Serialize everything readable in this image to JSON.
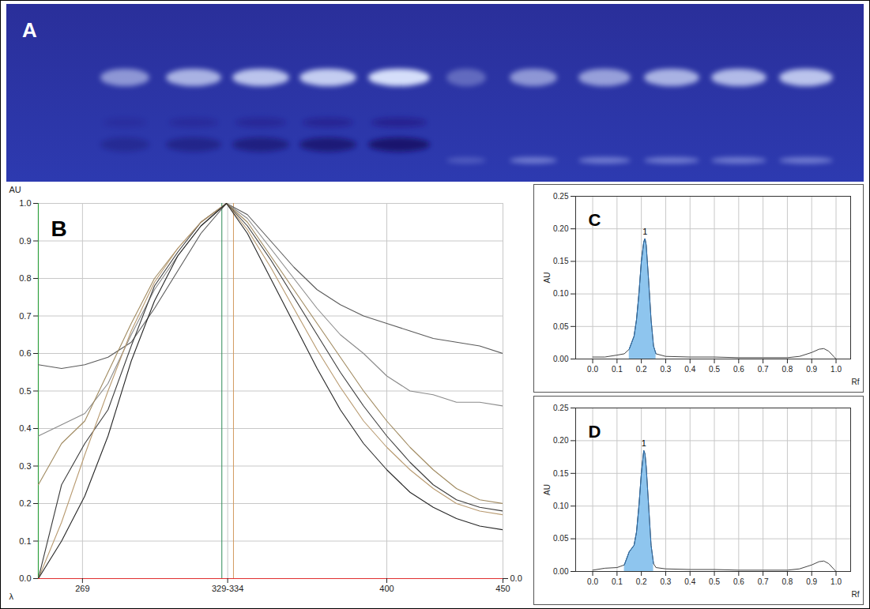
{
  "chart_data": [
    {
      "type": "image",
      "title": "A"
    },
    {
      "type": "spectra",
      "title": "B",
      "xlabel": "λ",
      "ylabel": "AU",
      "x": [
        250,
        260,
        270,
        280,
        290,
        300,
        310,
        320,
        331,
        340,
        350,
        360,
        370,
        380,
        390,
        400,
        410,
        420,
        430,
        440,
        450
      ],
      "series": [
        {
          "color": "#5a5a5a",
          "values": [
            0.57,
            0.56,
            0.57,
            0.59,
            0.63,
            0.72,
            0.82,
            0.92,
            1.0,
            0.97,
            0.9,
            0.83,
            0.77,
            0.73,
            0.7,
            0.68,
            0.66,
            0.64,
            0.63,
            0.62,
            0.6
          ]
        },
        {
          "color": "#8a8a8a",
          "values": [
            0.38,
            0.41,
            0.44,
            0.52,
            0.65,
            0.77,
            0.86,
            0.94,
            1.0,
            0.96,
            0.88,
            0.8,
            0.72,
            0.65,
            0.6,
            0.54,
            0.5,
            0.49,
            0.47,
            0.47,
            0.46
          ]
        },
        {
          "color": "#a08a60",
          "values": [
            0.25,
            0.36,
            0.42,
            0.55,
            0.68,
            0.8,
            0.88,
            0.95,
            1.0,
            0.95,
            0.86,
            0.77,
            0.68,
            0.59,
            0.5,
            0.42,
            0.35,
            0.29,
            0.24,
            0.21,
            0.2
          ]
        },
        {
          "color": "#3c3c3c",
          "values": [
            0.0,
            0.25,
            0.36,
            0.45,
            0.62,
            0.78,
            0.87,
            0.95,
            1.0,
            0.94,
            0.85,
            0.75,
            0.65,
            0.55,
            0.46,
            0.38,
            0.31,
            0.25,
            0.21,
            0.19,
            0.18
          ]
        },
        {
          "color": "#b89a70",
          "values": [
            0.0,
            0.15,
            0.33,
            0.5,
            0.66,
            0.79,
            0.88,
            0.95,
            1.0,
            0.93,
            0.83,
            0.72,
            0.61,
            0.51,
            0.42,
            0.35,
            0.29,
            0.24,
            0.2,
            0.18,
            0.17
          ]
        },
        {
          "color": "#262626",
          "values": [
            0.0,
            0.1,
            0.22,
            0.38,
            0.58,
            0.74,
            0.86,
            0.94,
            1.0,
            0.92,
            0.8,
            0.68,
            0.56,
            0.45,
            0.36,
            0.29,
            0.23,
            0.19,
            0.16,
            0.14,
            0.13
          ]
        }
      ],
      "vlines": [
        329,
        334
      ],
      "xlim": [
        250,
        450
      ],
      "xticks": [
        269,
        {
          "value": 331.5,
          "label": "329-334"
        },
        400,
        450
      ],
      "ylim": [
        0,
        1
      ],
      "yticks": [
        {
          "value": 0,
          "label": "0.0"
        },
        0.1,
        0.2,
        0.3,
        0.4,
        0.5,
        0.6,
        0.7,
        0.8,
        0.9,
        {
          "value": 1,
          "label": "1.0"
        }
      ],
      "y2lim": [
        0,
        1
      ],
      "y2ticks": [
        {
          "value": 0,
          "label": "0.0"
        }
      ],
      "grid": true
    },
    {
      "type": "densitogram",
      "title": "C",
      "xlabel": "Rf",
      "ylabel": "AU",
      "color": "#444444",
      "x": [
        0,
        0.05,
        0.1,
        0.13,
        0.15,
        0.17,
        0.18,
        0.19,
        0.2,
        0.21,
        0.215,
        0.22,
        0.23,
        0.24,
        0.25,
        0.26,
        0.3,
        0.4,
        0.5,
        0.6,
        0.7,
        0.8,
        0.85,
        0.9,
        0.93,
        0.95,
        0.97,
        0.99,
        1.0
      ],
      "values": [
        0.003,
        0.003,
        0.006,
        0.008,
        0.015,
        0.035,
        0.06,
        0.1,
        0.15,
        0.18,
        0.185,
        0.175,
        0.12,
        0.06,
        0.02,
        0.008,
        0.004,
        0.003,
        0.003,
        0.002,
        0.002,
        0.002,
        0.004,
        0.01,
        0.015,
        0.016,
        0.012,
        0.004,
        0.0
      ],
      "peak": {
        "label": "1",
        "range": [
          0.14,
          0.26
        ]
      },
      "xlim": [
        -0.07,
        1.06
      ],
      "xticks": [
        {
          "value": 0,
          "label": "0.0"
        },
        0.1,
        0.2,
        0.3,
        0.4,
        0.5,
        0.6,
        0.7,
        0.8,
        0.9,
        {
          "value": 1,
          "label": "1.0"
        }
      ],
      "ylim": [
        0,
        0.25
      ],
      "yticks": [
        {
          "value": 0,
          "label": "0.00"
        },
        {
          "value": 0.05,
          "label": "0.05"
        },
        {
          "value": 0.1,
          "label": "0.10"
        },
        {
          "value": 0.15,
          "label": "0.15"
        },
        {
          "value": 0.2,
          "label": "0.20"
        },
        {
          "value": 0.25,
          "label": "0.25"
        }
      ],
      "grid": true
    },
    {
      "type": "densitogram",
      "title": "D",
      "xlabel": "Rf",
      "ylabel": "AU",
      "color": "#444444",
      "x": [
        0,
        0.05,
        0.1,
        0.13,
        0.15,
        0.17,
        0.18,
        0.19,
        0.2,
        0.21,
        0.215,
        0.22,
        0.23,
        0.24,
        0.25,
        0.26,
        0.3,
        0.4,
        0.5,
        0.6,
        0.7,
        0.8,
        0.85,
        0.9,
        0.93,
        0.95,
        0.97,
        0.99,
        1.0
      ],
      "values": [
        0.002,
        0.005,
        0.006,
        0.01,
        0.03,
        0.04,
        0.06,
        0.1,
        0.15,
        0.185,
        0.18,
        0.16,
        0.1,
        0.04,
        0.012,
        0.006,
        0.004,
        0.003,
        0.003,
        0.002,
        0.002,
        0.002,
        0.004,
        0.01,
        0.015,
        0.016,
        0.012,
        0.004,
        0.0
      ],
      "peak": {
        "label": "1",
        "range": [
          0.13,
          0.25
        ]
      },
      "xlim": [
        -0.07,
        1.06
      ],
      "xticks": [
        {
          "value": 0,
          "label": "0.0"
        },
        0.1,
        0.2,
        0.3,
        0.4,
        0.5,
        0.6,
        0.7,
        0.8,
        0.9,
        {
          "value": 1,
          "label": "1.0"
        }
      ],
      "ylim": [
        0,
        0.25
      ],
      "yticks": [
        {
          "value": 0,
          "label": "0.00"
        },
        {
          "value": 0.05,
          "label": "0.05"
        },
        {
          "value": 0.1,
          "label": "0.10"
        },
        {
          "value": 0.15,
          "label": "0.15"
        },
        {
          "value": 0.2,
          "label": "0.20"
        },
        {
          "value": 0.25,
          "label": "0.25"
        }
      ],
      "grid": true
    }
  ]
}
